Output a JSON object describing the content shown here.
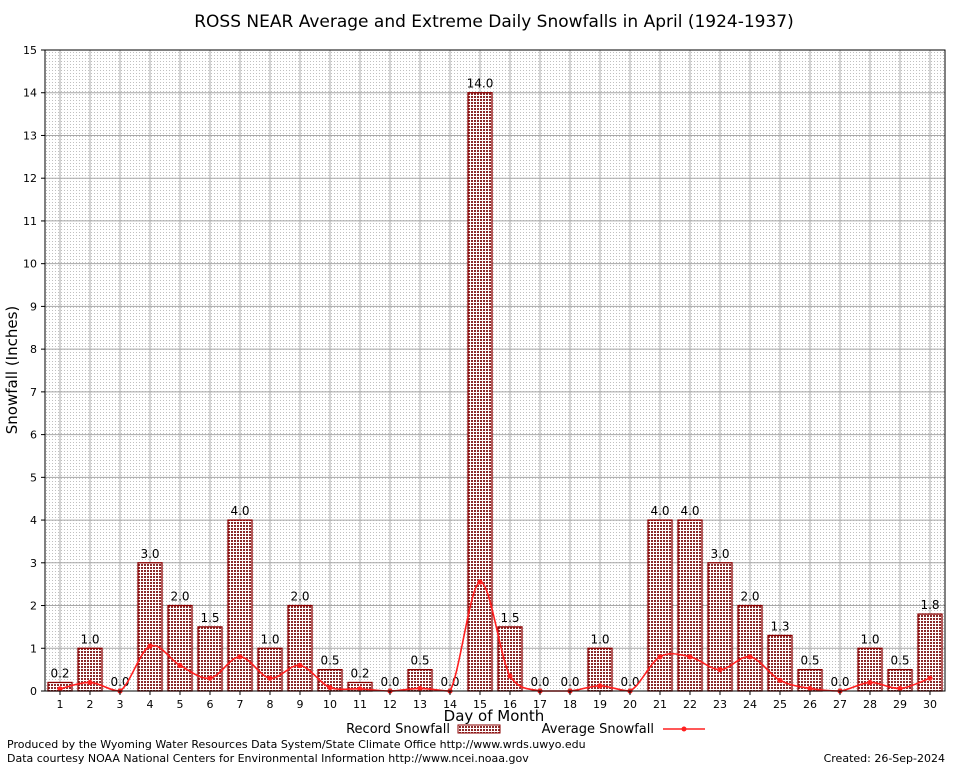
{
  "chart_data": {
    "type": "bar",
    "title": "ROSS NEAR Average and Extreme Daily Snowfalls in April (1924-1937)",
    "xlabel": "Day of Month",
    "ylabel": "Snowfall (Inches)",
    "ylim": [
      0,
      15
    ],
    "yticks": [
      "0",
      "1",
      "2",
      "3",
      "4",
      "5",
      "6",
      "7",
      "8",
      "9",
      "10",
      "11",
      "12",
      "13",
      "14",
      "15"
    ],
    "grid": true,
    "legend_position": "bottom",
    "categories": [
      "1",
      "2",
      "3",
      "4",
      "5",
      "6",
      "7",
      "8",
      "9",
      "10",
      "11",
      "12",
      "13",
      "14",
      "15",
      "16",
      "17",
      "18",
      "19",
      "20",
      "21",
      "22",
      "23",
      "24",
      "25",
      "26",
      "27",
      "28",
      "29",
      "30"
    ],
    "series": [
      {
        "name": "Record Snowfall",
        "kind": "bar",
        "color": "#8b0000",
        "values": [
          0.2,
          1.0,
          0.0,
          3.0,
          2.0,
          1.5,
          4.0,
          1.0,
          2.0,
          0.5,
          0.2,
          0.0,
          0.5,
          0.0,
          14.0,
          1.5,
          0.0,
          0.0,
          1.0,
          0.0,
          4.0,
          4.0,
          3.0,
          2.0,
          1.3,
          0.5,
          0.0,
          1.0,
          0.5,
          1.8
        ],
        "labels": [
          "0.2",
          "1.0",
          "0.0",
          "3.0",
          "2.0",
          "1.5",
          "4.0",
          "1.0",
          "2.0",
          "0.5",
          "0.2",
          "0.0",
          "0.5",
          "0.0",
          "14.0",
          "1.5",
          "0.0",
          "0.0",
          "1.0",
          "0.0",
          "4.0",
          "4.0",
          "3.0",
          "2.0",
          "1.3",
          "0.5",
          "0.0",
          "1.0",
          "0.5",
          "1.8"
        ]
      },
      {
        "name": "Average Snowfall",
        "kind": "line",
        "color": "#ff2020",
        "values": [
          0.05,
          0.2,
          0.0,
          1.05,
          0.6,
          0.3,
          0.8,
          0.3,
          0.6,
          0.08,
          0.05,
          0.0,
          0.06,
          0.0,
          2.55,
          0.35,
          0.0,
          0.0,
          0.12,
          0.0,
          0.8,
          0.8,
          0.5,
          0.8,
          0.25,
          0.06,
          0.0,
          0.2,
          0.06,
          0.3
        ]
      }
    ]
  },
  "footer": {
    "produced_by": "Produced by the Wyoming Water Resources Data System/State Climate Office http://www.wrds.uwyo.edu",
    "courtesy": "Data courtesy NOAA National Centers for Environmental Information http://www.ncei.noaa.gov",
    "created": "Created:  26-Sep-2024"
  }
}
